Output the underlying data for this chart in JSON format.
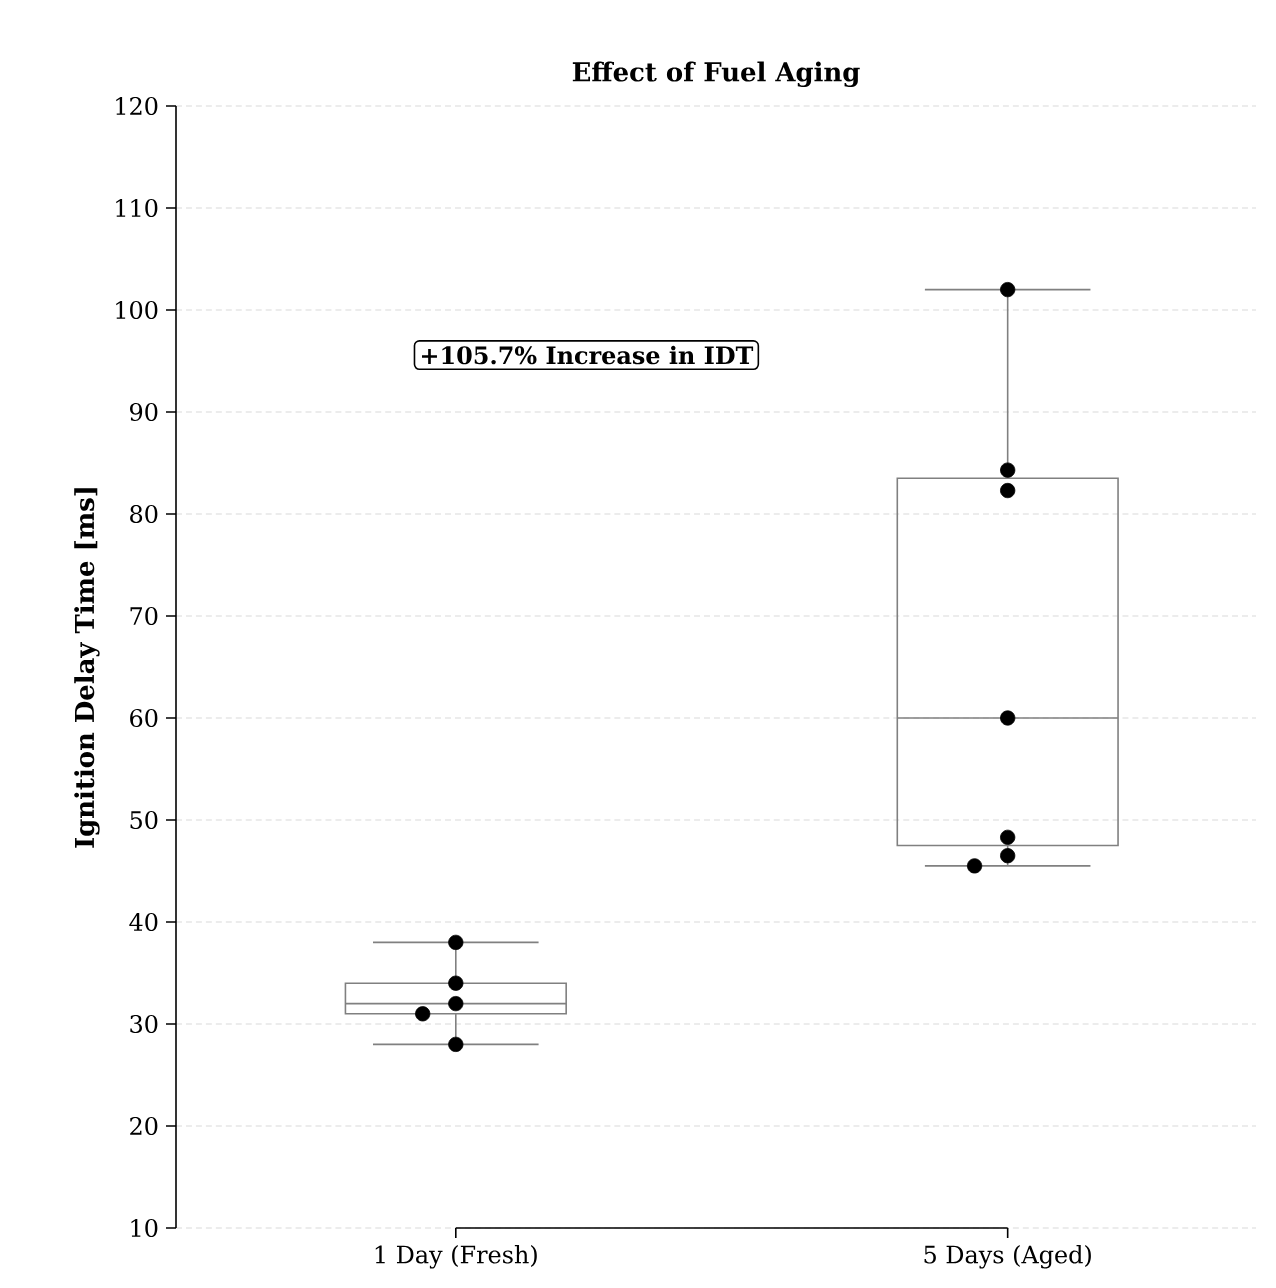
{
  "chart_data": {
    "type": "box",
    "title": "Effect of Fuel Aging",
    "ylabel": "Ignition Delay Time [ms]",
    "categories": [
      "1 Day (Fresh)",
      "5 Days (Aged)"
    ],
    "ylim": [
      10,
      120
    ],
    "yticks": [
      10,
      20,
      30,
      40,
      50,
      60,
      70,
      80,
      90,
      100,
      110,
      120
    ],
    "grid": "y",
    "annotations": [
      "+105.7% Increase in IDT"
    ],
    "series": [
      {
        "color": "#808080",
        "boxes": [
          {
            "low": 28,
            "q1": 31,
            "median": 32,
            "q3": 34,
            "high": 38
          },
          {
            "low": 45.5,
            "q1": 47.5,
            "median": 60,
            "q3": 83.5,
            "high": 102
          }
        ]
      },
      {
        "type": "scatter",
        "color": "#000000",
        "marker": "circle",
        "x": [
          "1 Day (Fresh)",
          "1 Day (Fresh)",
          "1 Day (Fresh)",
          "1 Day (Fresh)",
          "1 Day (Fresh)",
          "5 Days (Aged)",
          "5 Days (Aged)",
          "5 Days (Aged)",
          "5 Days (Aged)",
          "5 Days (Aged)",
          "5 Days (Aged)",
          "5 Days (Aged)"
        ],
        "values": [
          38,
          34,
          32,
          31,
          28,
          102,
          84.3,
          82.3,
          60,
          48.3,
          46.5,
          45.5
        ]
      }
    ]
  }
}
